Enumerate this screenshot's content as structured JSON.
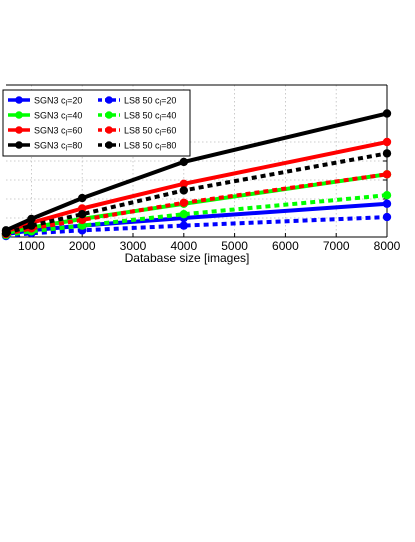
{
  "chart_data": {
    "type": "line",
    "title": "",
    "xlabel": "Database size [images]",
    "ylabel": "",
    "xlim": [
      500,
      8000
    ],
    "ylim": [
      0,
      8
    ],
    "grid": true,
    "grid_style": "dotted",
    "legend_placement": "top-left",
    "legend_columns": 2,
    "x": [
      500,
      1000,
      2000,
      4000,
      8000
    ],
    "x_ticks": [
      {
        "value": 1000,
        "label": "1000"
      },
      {
        "value": 2000,
        "label": "2000"
      },
      {
        "value": 3000,
        "label": "3000"
      },
      {
        "value": 4000,
        "label": "4000"
      },
      {
        "value": 5000,
        "label": "5000"
      },
      {
        "value": 6000,
        "label": "6000"
      },
      {
        "value": 7000,
        "label": "7000"
      },
      {
        "value": 8000,
        "label": "8000"
      }
    ],
    "y_gridlines": [
      1,
      2,
      3,
      4,
      5
    ],
    "series": [
      {
        "name": "SGN3 c_l=20",
        "name_main": "SGN3 c",
        "name_sub": "l",
        "name_tail": "=20",
        "color": "#0000ff",
        "dashed": false,
        "values": [
          0.15,
          0.35,
          0.6,
          1.0,
          1.75
        ]
      },
      {
        "name": "SGN3 c_l=40",
        "name_main": "SGN3 c",
        "name_sub": "l",
        "name_tail": "=40",
        "color": "#00ff00",
        "dashed": false,
        "values": [
          0.2,
          0.5,
          0.95,
          1.75,
          3.3
        ]
      },
      {
        "name": "SGN3 c_l=60",
        "name_main": "SGN3 c",
        "name_sub": "l",
        "name_tail": "=60",
        "color": "#ff0000",
        "dashed": false,
        "values": [
          0.3,
          0.75,
          1.5,
          2.8,
          5.0
        ]
      },
      {
        "name": "SGN3 c_l=80",
        "name_main": "SGN3 c",
        "name_sub": "l",
        "name_tail": "=80",
        "color": "#000000",
        "dashed": false,
        "values": [
          0.35,
          0.95,
          2.05,
          3.95,
          6.5
        ]
      },
      {
        "name": "LS8 50 c_l=20",
        "name_main": "LS8 50 c",
        "name_sub": "l",
        "name_tail": "=20",
        "color": "#0000ff",
        "dashed": true,
        "values": [
          0.05,
          0.2,
          0.35,
          0.6,
          1.05
        ]
      },
      {
        "name": "LS8 50 c_l=40",
        "name_main": "LS8 50 c",
        "name_sub": "l",
        "name_tail": "=40",
        "color": "#00ff00",
        "dashed": true,
        "values": [
          0.1,
          0.3,
          0.6,
          1.2,
          2.2
        ]
      },
      {
        "name": "LS8 50 c_l=60",
        "name_main": "LS8 50 c",
        "name_sub": "l",
        "name_tail": "=60",
        "color": "#ff0000",
        "dashed": true,
        "values": [
          0.15,
          0.45,
          0.9,
          1.8,
          3.3
        ]
      },
      {
        "name": "LS8 50 c_l=80",
        "name_main": "LS8 50 c",
        "name_sub": "l",
        "name_tail": "=80",
        "color": "#000000",
        "dashed": true,
        "values": [
          0.2,
          0.6,
          1.2,
          2.45,
          4.4
        ]
      }
    ]
  }
}
